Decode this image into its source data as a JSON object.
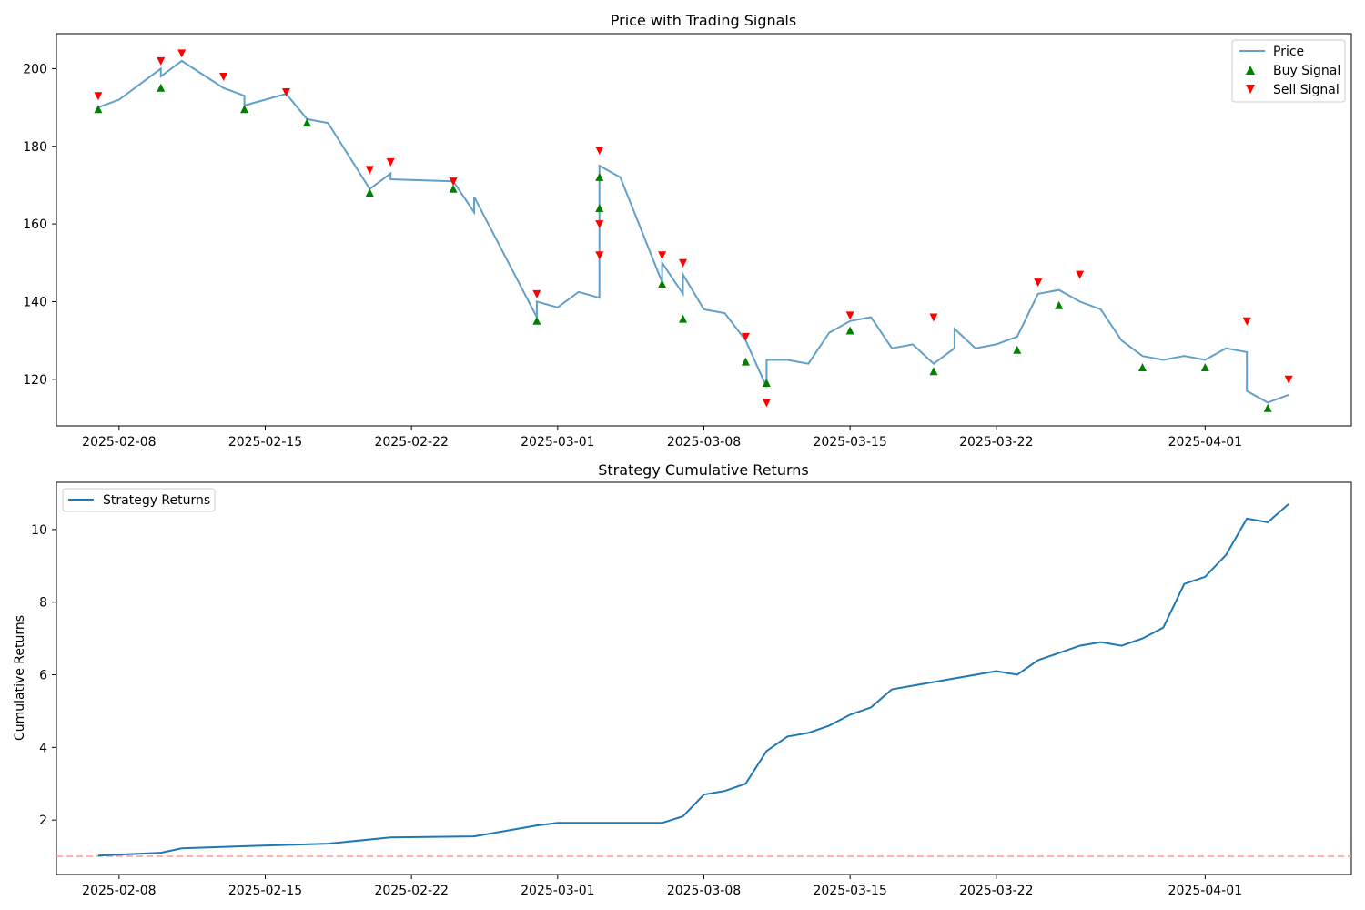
{
  "chart_data": [
    {
      "type": "line",
      "title": "Price with Trading Signals",
      "xlabel": "",
      "ylabel": "",
      "x_ticks": [
        "2025-02-08",
        "2025-02-15",
        "2025-02-22",
        "2025-03-01",
        "2025-03-08",
        "2025-03-15",
        "2025-03-22",
        "2025-04-01"
      ],
      "y_ticks": [
        120,
        140,
        160,
        180,
        200
      ],
      "xlim": [
        "2025-02-05",
        "2025-04-08"
      ],
      "ylim": [
        108,
        209
      ],
      "legend": {
        "position": "top-right",
        "entries": [
          {
            "label": "Price",
            "marker": "line"
          },
          {
            "label": "Buy Signal",
            "marker": "triangle-up"
          },
          {
            "label": "Sell Signal",
            "marker": "triangle-down"
          }
        ]
      },
      "colors": {
        "price": "#1f77b4",
        "buy": "#008000",
        "sell": "#ff0000"
      },
      "series": [
        {
          "name": "Price",
          "x": [
            "2025-02-07",
            "2025-02-08",
            "2025-02-10",
            "2025-02-10",
            "2025-02-11",
            "2025-02-13",
            "2025-02-14",
            "2025-02-14",
            "2025-02-16",
            "2025-02-17",
            "2025-02-18",
            "2025-02-20",
            "2025-02-21",
            "2025-02-21",
            "2025-02-24",
            "2025-02-25",
            "2025-02-25",
            "2025-02-28",
            "2025-02-28",
            "2025-03-01",
            "2025-03-02",
            "2025-03-03",
            "2025-03-03",
            "2025-03-04",
            "2025-03-06",
            "2025-03-06",
            "2025-03-07",
            "2025-03-07",
            "2025-03-08",
            "2025-03-09",
            "2025-03-10",
            "2025-03-11",
            "2025-03-11",
            "2025-03-12",
            "2025-03-13",
            "2025-03-14",
            "2025-03-15",
            "2025-03-16",
            "2025-03-17",
            "2025-03-18",
            "2025-03-19",
            "2025-03-20",
            "2025-03-20",
            "2025-03-21",
            "2025-03-22",
            "2025-03-23",
            "2025-03-24",
            "2025-03-25",
            "2025-03-26",
            "2025-03-27",
            "2025-03-28",
            "2025-03-29",
            "2025-03-30",
            "2025-03-31",
            "2025-04-01",
            "2025-04-02",
            "2025-04-03",
            "2025-04-03",
            "2025-04-04",
            "2025-04-05"
          ],
          "values": [
            190,
            192,
            200,
            198,
            202,
            195,
            193,
            190.5,
            193.5,
            187,
            186,
            169,
            173,
            171.5,
            171,
            163,
            167,
            136,
            140,
            138.5,
            142.5,
            141,
            175,
            172,
            145,
            150,
            142,
            147,
            138,
            137,
            130,
            118,
            125,
            125,
            124,
            132,
            135,
            136,
            128,
            129,
            124,
            128,
            133,
            128,
            129,
            131,
            142,
            143,
            140,
            138,
            130,
            126,
            125,
            126,
            125,
            128,
            127,
            117,
            114,
            116
          ]
        },
        {
          "name": "Buy Signal",
          "x": [
            "2025-02-07",
            "2025-02-10",
            "2025-02-14",
            "2025-02-17",
            "2025-02-20",
            "2025-02-24",
            "2025-02-28",
            "2025-03-03",
            "2025-03-03",
            "2025-03-06",
            "2025-03-07",
            "2025-03-10",
            "2025-03-11",
            "2025-03-15",
            "2025-03-19",
            "2025-03-23",
            "2025-03-25",
            "2025-03-29",
            "2025-04-01",
            "2025-04-04"
          ],
          "values": [
            189.5,
            195,
            189.5,
            186,
            168,
            169,
            135,
            164,
            172,
            144.5,
            135.5,
            124.5,
            119,
            132.5,
            122,
            127.5,
            139,
            123,
            123,
            112.5
          ]
        },
        {
          "name": "Sell Signal",
          "x": [
            "2025-02-07",
            "2025-02-10",
            "2025-02-11",
            "2025-02-13",
            "2025-02-16",
            "2025-02-20",
            "2025-02-21",
            "2025-02-24",
            "2025-02-28",
            "2025-03-03",
            "2025-03-03",
            "2025-03-03",
            "2025-03-06",
            "2025-03-07",
            "2025-03-10",
            "2025-03-11",
            "2025-03-15",
            "2025-03-19",
            "2025-03-24",
            "2025-03-26",
            "2025-04-03",
            "2025-04-05"
          ],
          "values": [
            193,
            202,
            204,
            198,
            194,
            174,
            176,
            171,
            142,
            179,
            160,
            152,
            152,
            150,
            131,
            114,
            136.5,
            136,
            145,
            147,
            135,
            120
          ]
        }
      ]
    },
    {
      "type": "line",
      "title": "Strategy Cumulative Returns",
      "xlabel": "",
      "ylabel": "Cumulative Returns",
      "x_ticks": [
        "2025-02-08",
        "2025-02-15",
        "2025-02-22",
        "2025-03-01",
        "2025-03-08",
        "2025-03-15",
        "2025-03-22",
        "2025-04-01"
      ],
      "y_ticks": [
        2,
        4,
        6,
        8,
        10
      ],
      "xlim": [
        "2025-02-05",
        "2025-04-08"
      ],
      "ylim": [
        0.5,
        11.3
      ],
      "baseline": 1,
      "legend": {
        "position": "top-left",
        "entries": [
          {
            "label": "Strategy Returns",
            "marker": "line"
          }
        ]
      },
      "colors": {
        "strategy": "#1f77b4",
        "baseline": "#ff9999"
      },
      "series": [
        {
          "name": "Strategy Returns",
          "x": [
            "2025-02-07",
            "2025-02-10",
            "2025-02-11",
            "2025-02-14",
            "2025-02-18",
            "2025-02-21",
            "2025-02-25",
            "2025-02-28",
            "2025-03-01",
            "2025-03-03",
            "2025-03-06",
            "2025-03-07",
            "2025-03-08",
            "2025-03-09",
            "2025-03-10",
            "2025-03-11",
            "2025-03-12",
            "2025-03-13",
            "2025-03-14",
            "2025-03-15",
            "2025-03-16",
            "2025-03-17",
            "2025-03-18",
            "2025-03-19",
            "2025-03-20",
            "2025-03-21",
            "2025-03-22",
            "2025-03-23",
            "2025-03-24",
            "2025-03-25",
            "2025-03-26",
            "2025-03-27",
            "2025-03-28",
            "2025-03-29",
            "2025-03-30",
            "2025-03-31",
            "2025-04-01",
            "2025-04-02",
            "2025-04-03",
            "2025-04-04",
            "2025-04-05"
          ],
          "values": [
            1.02,
            1.1,
            1.22,
            1.28,
            1.35,
            1.52,
            1.55,
            1.85,
            1.92,
            1.92,
            1.92,
            2.1,
            2.7,
            2.8,
            3.0,
            3.9,
            4.3,
            4.4,
            4.6,
            4.9,
            5.1,
            5.6,
            5.7,
            5.8,
            5.9,
            6.0,
            6.1,
            6.0,
            6.4,
            6.6,
            6.8,
            6.9,
            6.8,
            7.0,
            7.3,
            8.5,
            8.7,
            9.3,
            10.3,
            10.2,
            10.7
          ]
        }
      ]
    }
  ]
}
